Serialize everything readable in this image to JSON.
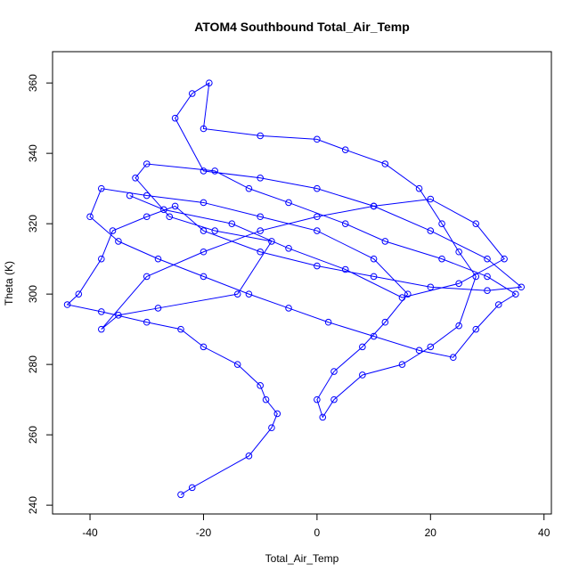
{
  "chart_data": {
    "type": "line",
    "title": "ATOM4 Southbound Total_Air_Temp",
    "x_label": "Total_Air_Temp",
    "y_label": "Theta (K)",
    "x": [
      -24,
      -22,
      -12,
      -8,
      -7,
      -9,
      -10,
      -14,
      -20,
      -24,
      -30,
      -38,
      -44,
      -42,
      -38,
      -36,
      -30,
      -25,
      -20,
      -10,
      0,
      10,
      20,
      30,
      36,
      30,
      20,
      10,
      0,
      -10,
      -20,
      -25,
      -22,
      -19,
      -20,
      -10,
      0,
      5,
      12,
      18,
      22,
      25,
      28,
      25,
      20,
      15,
      8,
      3,
      1,
      0,
      3,
      8,
      12,
      16,
      10,
      0,
      -10,
      -20,
      -30,
      -38,
      -40,
      -35,
      -28,
      -20,
      -12,
      -5,
      2,
      10,
      18,
      24,
      28,
      32,
      35,
      30,
      22,
      12,
      5,
      -5,
      -12,
      -18,
      -30,
      -32,
      -26,
      -18,
      -8,
      -14,
      -28,
      -35,
      -38,
      -30,
      -20,
      -10,
      0,
      10,
      20,
      28,
      33,
      25,
      15,
      5,
      -5,
      -15,
      -27,
      -33
    ],
    "series": [
      {
        "name": "Theta",
        "color": "#0000ff",
        "values": [
          243,
          245,
          254,
          262,
          266,
          270,
          274,
          280,
          285,
          290,
          292,
          295,
          297,
          300,
          310,
          318,
          322,
          325,
          318,
          312,
          308,
          305,
          302,
          301,
          302,
          310,
          318,
          325,
          330,
          333,
          335,
          350,
          357,
          360,
          347,
          345,
          344,
          341,
          337,
          330,
          320,
          312,
          305,
          291,
          285,
          280,
          277,
          270,
          265,
          270,
          278,
          285,
          292,
          300,
          310,
          318,
          322,
          326,
          328,
          330,
          322,
          315,
          310,
          305,
          300,
          296,
          292,
          288,
          284,
          282,
          290,
          297,
          300,
          305,
          310,
          315,
          320,
          326,
          330,
          335,
          337,
          333,
          322,
          318,
          315,
          300,
          296,
          294,
          290,
          305,
          312,
          318,
          322,
          325,
          327,
          320,
          310,
          303,
          299,
          307,
          313,
          320,
          324,
          328
        ]
      }
    ],
    "xlim": [
      -46.6,
      41.3
    ],
    "ylim": [
      237.5,
      368.9
    ],
    "xticks": [
      -40,
      -20,
      0,
      20,
      40
    ],
    "yticks": [
      240,
      260,
      280,
      300,
      320,
      340,
      360
    ]
  }
}
